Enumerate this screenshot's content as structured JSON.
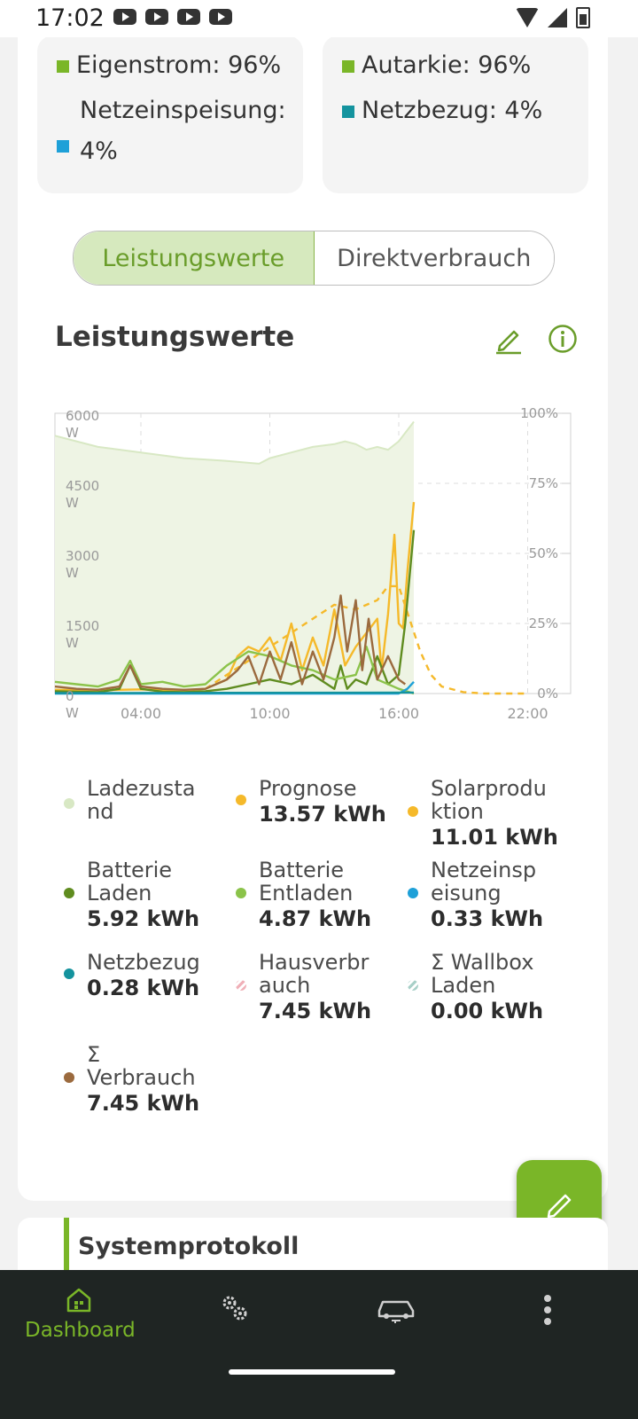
{
  "status_bar": {
    "time": "17:02"
  },
  "summary": {
    "left": [
      {
        "label": "Eigenstrom: 96%",
        "color": "#7ab628"
      },
      {
        "label": "Netzeinspeisung: 4%",
        "color": "#1ea0d8"
      }
    ],
    "right": [
      {
        "label": "Autarkie: 96%",
        "color": "#7ab628"
      },
      {
        "label": "Netzbezug: 4%",
        "color": "#14939e"
      }
    ]
  },
  "toggle": {
    "active": "Leistungswerte",
    "inactive": "Direktverbrauch"
  },
  "section": {
    "title": "Leistungswerte",
    "edit_icon": "pencil-icon",
    "info_icon": "info-icon"
  },
  "chart_data": {
    "type": "line",
    "x_ticks": [
      "04:00",
      "10:00",
      "16:00",
      "22:00"
    ],
    "y_left_ticks": [
      [
        "0",
        "W"
      ],
      [
        "1500",
        "W"
      ],
      [
        "3000",
        "W"
      ],
      [
        "4500",
        "W"
      ],
      [
        "6000",
        "W"
      ]
    ],
    "y_right_ticks": [
      "0%",
      "25%",
      "50%",
      "75%",
      "100%"
    ],
    "x_range_hours": [
      0,
      24
    ],
    "y_left_range": [
      0,
      6000
    ],
    "y_right_range": [
      0,
      100
    ],
    "grid": true,
    "series": [
      {
        "name": "Ladezustand",
        "axis": "right",
        "color": "#d8e8c4",
        "kind": "area",
        "x": [
          0,
          1,
          2,
          4,
          6,
          8,
          9.5,
          10,
          11,
          12,
          13,
          13.5,
          14,
          14.5,
          15,
          15.5,
          16,
          16.4,
          16.7
        ],
        "y": [
          92,
          90,
          88,
          86,
          84,
          83,
          82,
          84,
          86,
          88,
          89,
          90,
          89,
          87,
          88,
          87,
          90,
          94,
          97
        ]
      },
      {
        "name": "Prognose",
        "color": "#f5b92a",
        "kind": "dashed",
        "x": [
          7,
          8,
          9,
          10,
          11,
          12,
          13,
          14,
          15,
          15.5,
          16,
          16.5,
          17,
          17.5,
          18,
          19,
          20,
          22
        ],
        "y": [
          100,
          400,
          700,
          1000,
          1300,
          1600,
          1900,
          1800,
          2000,
          2300,
          2300,
          1600,
          900,
          400,
          150,
          30,
          0,
          0
        ]
      },
      {
        "name": "Solarproduktion",
        "color": "#f5b92a",
        "kind": "line",
        "x": [
          0,
          2,
          4,
          6,
          7,
          8,
          8.5,
          9,
          9.5,
          10,
          10.5,
          11,
          11.5,
          12,
          12.5,
          13,
          13.5,
          14,
          14.5,
          15,
          15.2,
          15.5,
          15.8,
          16,
          16.2,
          16.4,
          16.7
        ],
        "y": [
          80,
          70,
          90,
          60,
          100,
          300,
          800,
          1000,
          900,
          1200,
          700,
          1500,
          500,
          1200,
          600,
          1800,
          600,
          1000,
          1300,
          1600,
          500,
          1700,
          3400,
          1500,
          1400,
          2600,
          4100
        ]
      },
      {
        "name": "Batterie Laden",
        "color": "#5f8c1f",
        "kind": "line",
        "x": [
          0,
          1,
          2,
          3,
          3.5,
          4,
          5,
          6,
          7,
          8,
          9,
          10,
          11,
          12,
          13,
          13.3,
          13.6,
          14,
          14.5,
          15,
          15.5,
          16,
          16.3,
          16.7
        ],
        "y": [
          50,
          40,
          30,
          100,
          600,
          100,
          40,
          30,
          50,
          100,
          200,
          300,
          200,
          400,
          100,
          600,
          100,
          300,
          200,
          800,
          200,
          400,
          1500,
          3500
        ]
      },
      {
        "name": "Batterie Entladen",
        "color": "#8bc34a",
        "kind": "line",
        "x": [
          0,
          1,
          2,
          3,
          3.5,
          4,
          5,
          6,
          7,
          8,
          9,
          10,
          11,
          12,
          13,
          14,
          14.5,
          15,
          16,
          16.7
        ],
        "y": [
          250,
          200,
          150,
          300,
          700,
          200,
          250,
          150,
          200,
          600,
          900,
          800,
          600,
          500,
          300,
          400,
          1000,
          300,
          100,
          0
        ]
      },
      {
        "name": "Netzeinspeisung",
        "color": "#1ea0d8",
        "kind": "line",
        "x": [
          0,
          16,
          16.4,
          16.7
        ],
        "y": [
          0,
          0,
          100,
          250
        ]
      },
      {
        "name": "Netzbezug",
        "color": "#14939e",
        "kind": "line",
        "x": [
          0,
          16.7
        ],
        "y": [
          10,
          20
        ]
      },
      {
        "name": "Σ Verbrauch",
        "color": "#9b6a3e",
        "kind": "line",
        "x": [
          0,
          1,
          2,
          3,
          3.5,
          4,
          5,
          6,
          7,
          8,
          8.5,
          9,
          9.5,
          10,
          10.5,
          11,
          11.5,
          12,
          12.5,
          13,
          13.3,
          13.6,
          14,
          14.3,
          14.6,
          15,
          15.5,
          16,
          16.3
        ],
        "y": [
          150,
          100,
          80,
          150,
          600,
          150,
          100,
          80,
          100,
          300,
          500,
          800,
          200,
          900,
          300,
          1100,
          200,
          900,
          300,
          1200,
          2100,
          900,
          2000,
          500,
          1600,
          300,
          800,
          300,
          200
        ]
      }
    ]
  },
  "legend": [
    {
      "name": "Ladezustand",
      "value": "",
      "color": "#d8e8c4",
      "style": "solid"
    },
    {
      "name": "Prognose",
      "value": "13.57 kWh",
      "color": "#f5b92a",
      "style": "solid"
    },
    {
      "name": "Solarproduktion",
      "value": "11.01 kWh",
      "color": "#f5b92a",
      "style": "solid"
    },
    {
      "name": "Batterie Laden",
      "value": "5.92 kWh",
      "color": "#5f8c1f",
      "style": "solid"
    },
    {
      "name": "Batterie Entladen",
      "value": "4.87 kWh",
      "color": "#8bc34a",
      "style": "solid"
    },
    {
      "name": "Netzeinspeisung",
      "value": "0.33 kWh",
      "color": "#1ea0d8",
      "style": "solid"
    },
    {
      "name": "Netzbezug",
      "value": "0.28 kWh",
      "color": "#14939e",
      "style": "solid"
    },
    {
      "name": "Hausverbrauch",
      "value": "7.45 kWh",
      "color": "#f0b0b8",
      "style": "striped"
    },
    {
      "name": "Σ Wallbox Laden",
      "value": "0.00 kWh",
      "color": "#a8d0c8",
      "style": "striped"
    },
    {
      "name": "Σ Verbrauch",
      "value": "7.45 kWh",
      "color": "#9b6a3e",
      "style": "solid"
    }
  ],
  "legend_display": [
    "Ladezusta\nnd",
    "Prognose",
    "Solarprodu\nktion",
    "Batterie\nLaden",
    "Batterie\nEntladen",
    "Netzeinsp\neisung",
    "Netzbezug",
    "Hausverbr\nauch",
    "Σ Wallbox\nLaden",
    "Σ\nVerbrauch"
  ],
  "fab": {
    "icon": "pencil-icon"
  },
  "protocol": {
    "title": "Systemprotokoll"
  },
  "bottom_nav": {
    "items": [
      {
        "label": "Dashboard",
        "icon": "home-icon",
        "active": true
      },
      {
        "label": "",
        "icon": "gears-icon"
      },
      {
        "label": "",
        "icon": "car-charging-icon"
      },
      {
        "label": "",
        "icon": "more-vertical-icon"
      }
    ]
  }
}
